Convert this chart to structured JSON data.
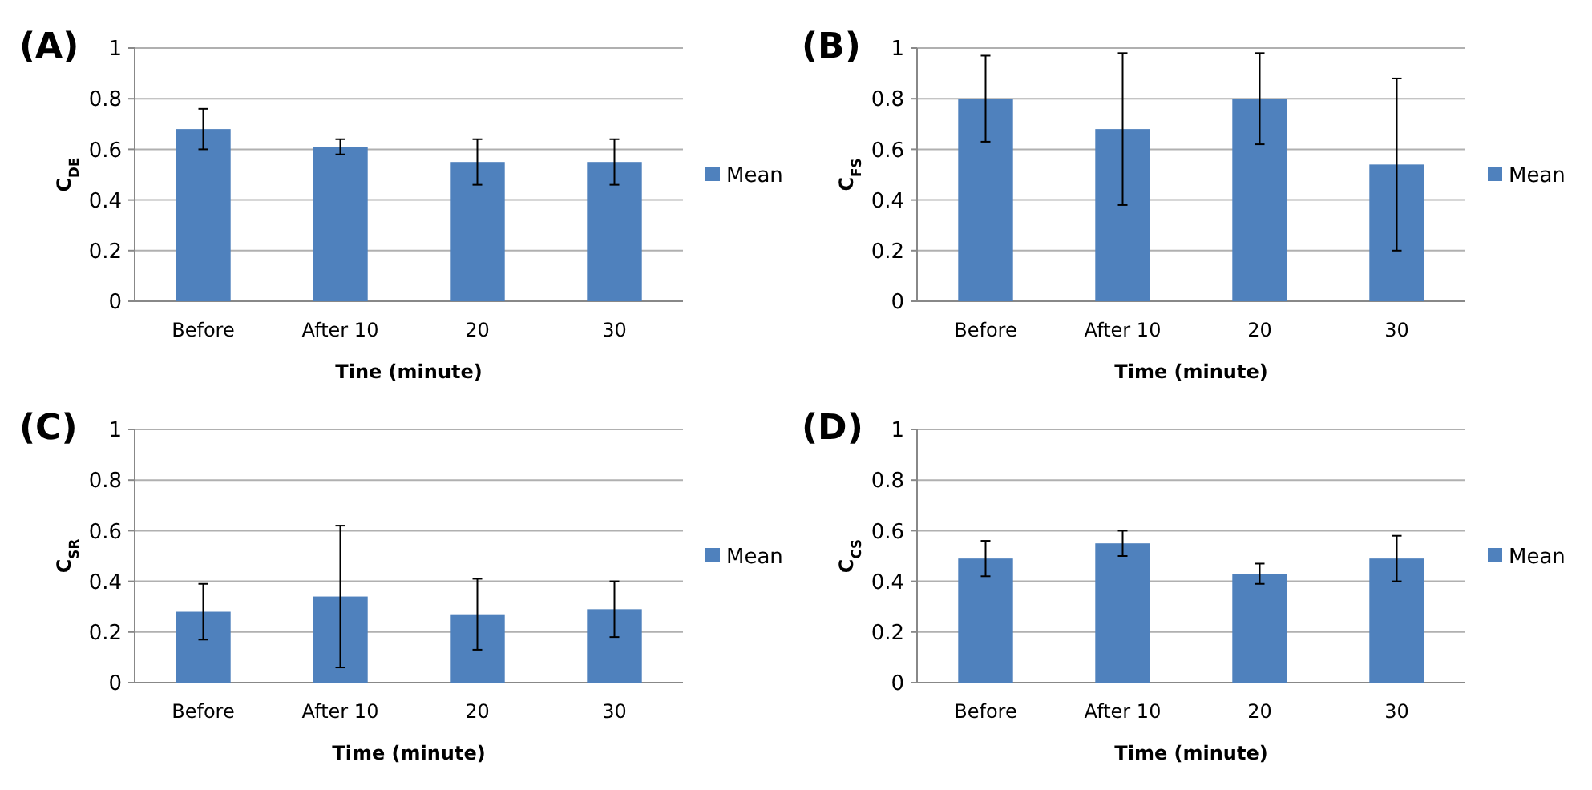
{
  "chart_data": [
    {
      "type": "bar",
      "title": "(A)",
      "xlabel": "Tine (minute)",
      "ylabel": "C$_{DE}$",
      "categories": [
        "Before",
        "After 10",
        "20",
        "30"
      ],
      "series": [
        {
          "name": "Mean",
          "color": "#4f81bd",
          "values": [
            0.68,
            0.61,
            0.55,
            0.55
          ],
          "errors": [
            0.08,
            0.03,
            0.09,
            0.09
          ]
        }
      ],
      "ylim": [
        0,
        1
      ],
      "yticks": [
        0,
        0.2,
        0.4,
        0.6,
        0.8,
        1
      ],
      "grid": "y",
      "legend": "right"
    },
    {
      "type": "bar",
      "title": "(B)",
      "xlabel": "Time (minute)",
      "ylabel": "C$_{FS}$",
      "categories": [
        "Before",
        "After 10",
        "20",
        "30"
      ],
      "series": [
        {
          "name": "Mean",
          "color": "#4f81bd",
          "values": [
            0.8,
            0.68,
            0.8,
            0.54
          ],
          "errors": [
            0.17,
            0.3,
            0.18,
            0.34
          ]
        }
      ],
      "ylim": [
        0,
        1
      ],
      "yticks": [
        0,
        0.2,
        0.4,
        0.6,
        0.8,
        1
      ],
      "grid": "y",
      "legend": "right"
    },
    {
      "type": "bar",
      "title": "(C)",
      "xlabel": "Time (minute)",
      "ylabel": "C$_{SR}$",
      "categories": [
        "Before",
        "After 10",
        "20",
        "30"
      ],
      "series": [
        {
          "name": "Mean",
          "color": "#4f81bd",
          "values": [
            0.28,
            0.34,
            0.27,
            0.29
          ],
          "errors": [
            0.11,
            0.28,
            0.14,
            0.11
          ]
        }
      ],
      "ylim": [
        0,
        1
      ],
      "yticks": [
        0,
        0.2,
        0.4,
        0.6,
        0.8,
        1
      ],
      "grid": "y",
      "legend": "right"
    },
    {
      "type": "bar",
      "title": "(D)",
      "xlabel": "Time (minute)",
      "ylabel": "C$_{CS}$",
      "categories": [
        "Before",
        "After 10",
        "20",
        "30"
      ],
      "series": [
        {
          "name": "Mean",
          "color": "#4f81bd",
          "values": [
            0.49,
            0.55,
            0.43,
            0.49
          ],
          "errors": [
            0.07,
            0.05,
            0.04,
            0.09
          ]
        }
      ],
      "ylim": [
        0,
        1
      ],
      "yticks": [
        0,
        0.2,
        0.4,
        0.6,
        0.8,
        1
      ],
      "grid": "y",
      "legend": "right"
    }
  ]
}
